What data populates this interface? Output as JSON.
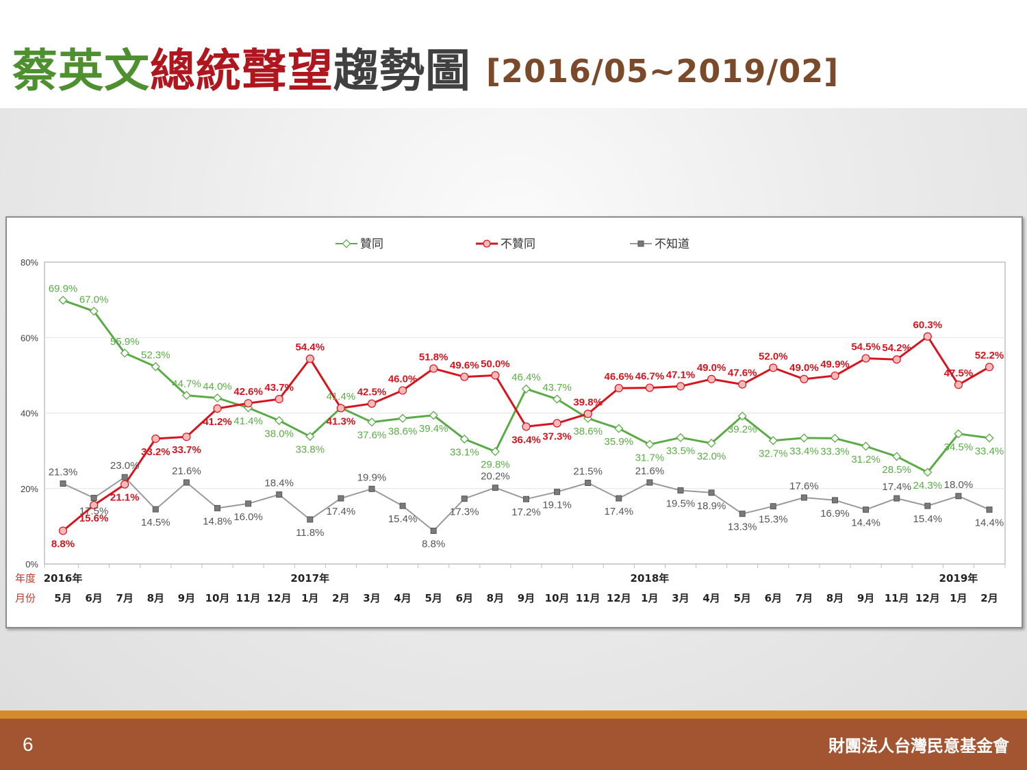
{
  "header": {
    "title_part1": "蔡英文",
    "title_part2": "總統聲望",
    "title_part3": "趨勢圖",
    "date_range": "[2016/05~2019/02]"
  },
  "footer": {
    "page_number": "6",
    "organization": "財團法人台灣民意基金會"
  },
  "chart_data": {
    "type": "line",
    "title": "",
    "ylim": [
      0,
      80
    ],
    "y_ticks": [
      "0%",
      "20%",
      "40%",
      "60%",
      "80%"
    ],
    "year_row_label": "年度",
    "month_row_label": "月份",
    "categories": [
      "5月",
      "6月",
      "7月",
      "8月",
      "9月",
      "10月",
      "11月",
      "12月",
      "1月",
      "2月",
      "3月",
      "4月",
      "5月",
      "6月",
      "8月",
      "9月",
      "10月",
      "11月",
      "12月",
      "1月",
      "3月",
      "4月",
      "5月",
      "6月",
      "7月",
      "8月",
      "9月",
      "11月",
      "12月",
      "1月",
      "2月"
    ],
    "years": [
      {
        "index": 0,
        "label": "2016年"
      },
      {
        "index": 8,
        "label": "2017年"
      },
      {
        "index": 19,
        "label": "2018年"
      },
      {
        "index": 29,
        "label": "2019年"
      }
    ],
    "series": [
      {
        "name": "贊同",
        "color": "#5aab46",
        "values": [
          69.9,
          67.0,
          55.9,
          52.3,
          44.7,
          44.0,
          41.4,
          38.0,
          33.8,
          41.4,
          37.6,
          38.6,
          39.4,
          33.1,
          29.8,
          46.4,
          43.7,
          38.6,
          35.9,
          31.7,
          33.5,
          32.0,
          39.2,
          32.7,
          33.4,
          33.3,
          31.2,
          28.5,
          24.3,
          34.5,
          33.4
        ],
        "labels": [
          "69.9%",
          "67.0%",
          "55.9%",
          "52.3%",
          "44.7%",
          "44.0%",
          "41.4%",
          "38.0%",
          "33.8%",
          "41.4%",
          "37.6%",
          "38.6%",
          "39.4%",
          "33.1%",
          "29.8%",
          "46.4%",
          "43.7%",
          "38.6%",
          "35.9%",
          "31.7%",
          "33.5%",
          "32.0%",
          "39.2%",
          "32.7%",
          "33.4%",
          "33.3%",
          "31.2%",
          "28.5%",
          "24.3%",
          "34.5%",
          "33.4%"
        ]
      },
      {
        "name": "不贊同",
        "color": "#d7141e",
        "values": [
          8.8,
          15.6,
          21.1,
          33.2,
          33.7,
          41.2,
          42.6,
          43.7,
          54.4,
          41.3,
          42.5,
          46.0,
          51.8,
          49.6,
          50.0,
          36.4,
          37.3,
          39.8,
          46.6,
          46.7,
          47.1,
          49.0,
          47.6,
          52.0,
          49.0,
          49.9,
          54.5,
          54.2,
          60.3,
          47.5,
          52.2
        ],
        "labels": [
          "8.8%",
          "15.6%",
          "21.1%",
          "33.2%",
          "33.7%",
          "41.2%",
          "42.6%",
          "43.7%",
          "54.4%",
          "41.3%",
          "42.5%",
          "46.0%",
          "51.8%",
          "49.6%",
          "50.0%",
          "36.4%",
          "37.3%",
          "39.8%",
          "46.6%",
          "46.7%",
          "47.1%",
          "49.0%",
          "47.6%",
          "52.0%",
          "49.0%",
          "49.9%",
          "54.5%",
          "54.2%",
          "60.3%",
          "47.5%",
          "52.2%"
        ]
      },
      {
        "name": "不知道",
        "color": "#999999",
        "values": [
          21.3,
          17.5,
          23.0,
          14.5,
          21.6,
          14.8,
          16.0,
          18.4,
          11.8,
          17.4,
          19.9,
          15.4,
          8.8,
          17.3,
          20.2,
          17.2,
          19.1,
          21.5,
          17.4,
          21.6,
          19.5,
          18.9,
          13.3,
          15.3,
          17.6,
          16.9,
          14.4,
          17.4,
          15.4,
          18.0,
          14.4
        ],
        "labels": [
          "21.3%",
          "17.5%",
          "23.0%",
          "14.5%",
          "21.6%",
          "14.8%",
          "16.0%",
          "18.4%",
          "11.8%",
          "17.4%",
          "19.9%",
          "15.4%",
          "8.8%",
          "17.3%",
          "20.2%",
          "17.2%",
          "19.1%",
          "21.5%",
          "17.4%",
          "21.6%",
          "19.5%",
          "18.9%",
          "13.3%",
          "15.3%",
          "17.6%",
          "16.9%",
          "14.4%",
          "17.4%",
          "15.4%",
          "18.0%",
          "14.4%"
        ]
      }
    ],
    "legend_position": "top-center",
    "grid": true
  }
}
